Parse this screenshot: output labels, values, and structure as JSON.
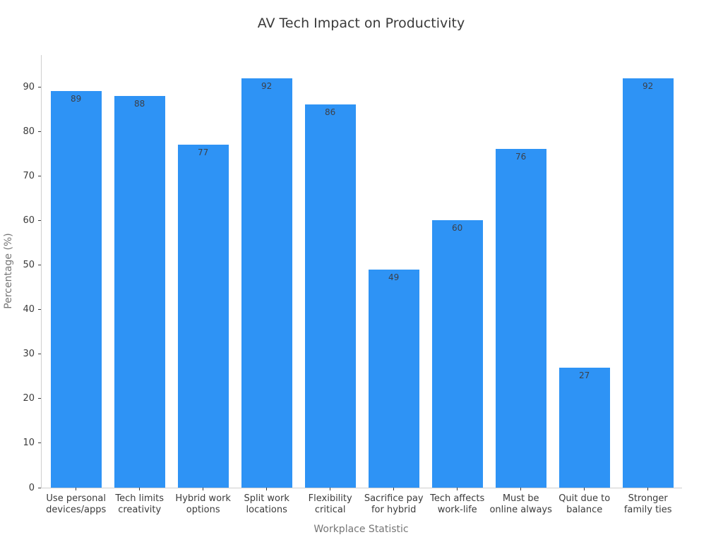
{
  "title": "AV Tech Impact on Productivity",
  "chart_data": {
    "type": "bar",
    "title": "AV Tech Impact on Productivity",
    "xlabel": "Workplace Statistic",
    "ylabel": "Percentage (%)",
    "categories": [
      "Use personal\ndevices/apps",
      "Tech limits\ncreativity",
      "Hybrid work\noptions",
      "Split work\nlocations",
      "Flexibility\ncritical",
      "Sacrifice pay\nfor hybrid",
      "Tech affects\nwork-life",
      "Must be\nonline always",
      "Quit due to\nbalance",
      "Stronger\nfamily ties"
    ],
    "values": [
      89,
      88,
      77,
      92,
      86,
      49,
      60,
      76,
      27,
      92
    ],
    "value_labels_shown": true,
    "yticks": [
      0,
      10,
      20,
      30,
      40,
      50,
      60,
      70,
      80,
      90
    ],
    "ylim": [
      0,
      97.15
    ],
    "grid": false,
    "legend_position": "none",
    "bar_color": "#2E93F5",
    "value_label_color": "#3c4049",
    "tick_label_color": "#3b3b3b",
    "axis_label_color": "#767676",
    "title_color": "#3a3a3a",
    "spine_color": "#cfcfcf",
    "background_color": "#ffffff"
  }
}
